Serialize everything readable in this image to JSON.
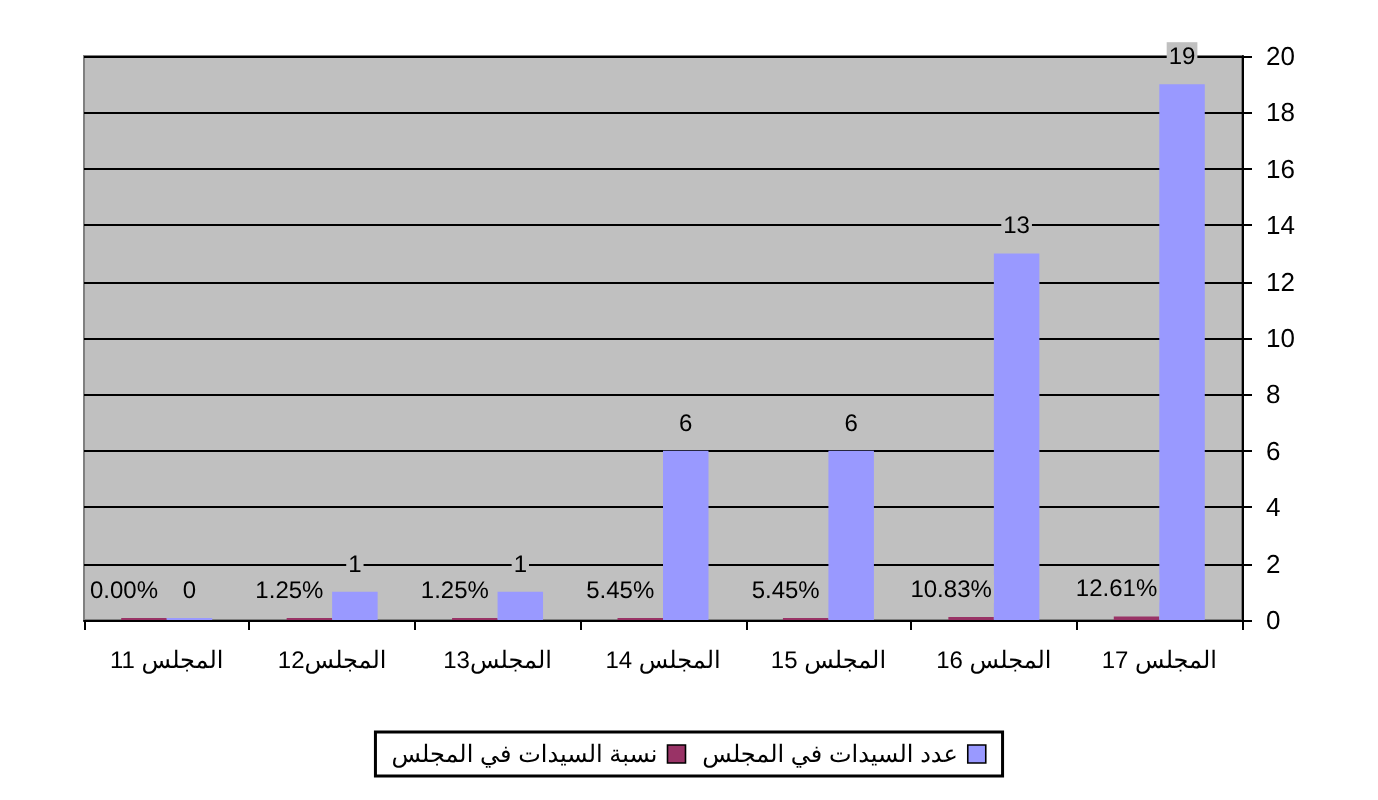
{
  "chart_data": {
    "type": "bar",
    "categories": [
      "المجلس 11",
      "المجلس12",
      "المجلس13",
      "المجلس 14",
      "المجلس 15",
      "المجلس 16",
      "المجلس 17"
    ],
    "series": [
      {
        "name": "نسبة السيدات في المجلس",
        "color": "#993366",
        "values": [
          0,
          0.0125,
          0.0125,
          0.0545,
          0.0545,
          0.1083,
          0.1261
        ],
        "value_labels": [
          "0.00%",
          "1.25%",
          "1.25%",
          "5.45%",
          "5.45%",
          "10.83%",
          "12.61%"
        ]
      },
      {
        "name": "عدد السيدات في المجلس",
        "color": "#9999ff",
        "values": [
          0,
          1,
          1,
          6,
          6,
          13,
          19
        ],
        "value_labels": [
          "0",
          "1",
          "1",
          "6",
          "6",
          "13",
          "19"
        ]
      }
    ],
    "ylim": [
      0,
      20
    ],
    "yticks": [
      0,
      2,
      4,
      6,
      8,
      10,
      12,
      14,
      16,
      18,
      20
    ],
    "grid": "y",
    "legend": "bottom"
  }
}
